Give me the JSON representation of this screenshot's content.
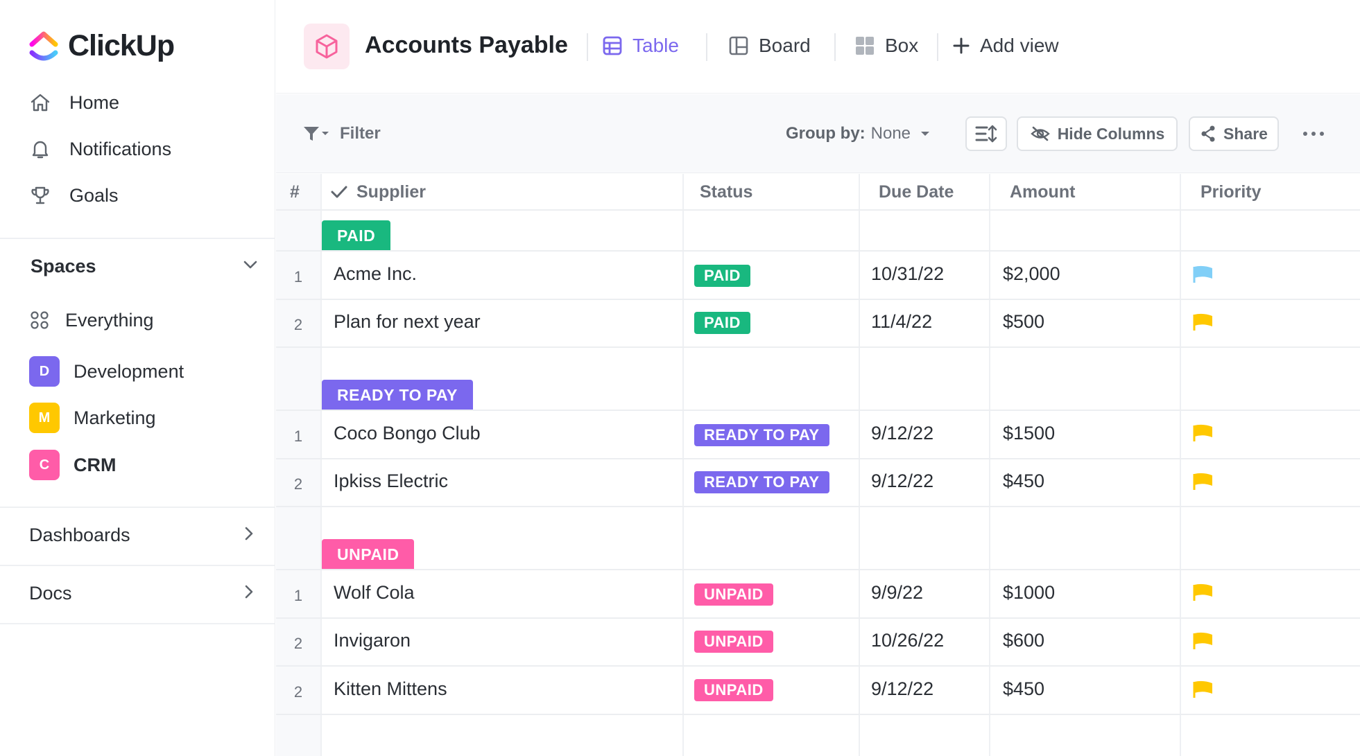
{
  "sidebar": {
    "logo_text": "ClickUp",
    "nav": [
      {
        "label": "Home",
        "icon": "home-icon"
      },
      {
        "label": "Notifications",
        "icon": "bell-icon"
      },
      {
        "label": "Goals",
        "icon": "trophy-icon"
      }
    ],
    "spaces_label": "Spaces",
    "everything_label": "Everything",
    "spaces": [
      {
        "letter": "D",
        "label": "Development",
        "color": "#7b68ee"
      },
      {
        "letter": "M",
        "label": "Marketing",
        "color": "#ffc800"
      },
      {
        "letter": "C",
        "label": "CRM",
        "color": "#ff5ca8"
      }
    ],
    "dashboards_label": "Dashboards",
    "docs_label": "Docs"
  },
  "header": {
    "title": "Accounts Payable",
    "views": [
      {
        "label": "Table",
        "icon": "table-icon",
        "active": true
      },
      {
        "label": "Board",
        "icon": "board-icon",
        "active": false
      },
      {
        "label": "Box",
        "icon": "box-grid-icon",
        "active": false
      }
    ],
    "add_view_label": "Add view"
  },
  "toolbar": {
    "filter_label": "Filter",
    "group_by_key": "Group by:",
    "group_by_value": "None",
    "hide_columns_label": "Hide Columns",
    "share_label": "Share"
  },
  "table": {
    "columns": {
      "num": "#",
      "supplier": "Supplier",
      "status": "Status",
      "due_date": "Due Date",
      "amount": "Amount",
      "priority": "Priority"
    },
    "groups": [
      {
        "name": "PAID",
        "color": "#19b87f",
        "rows": [
          {
            "num": "1",
            "supplier": "Acme Inc.",
            "status": "PAID",
            "due": "10/31/22",
            "amount": "$2,000",
            "priority_color": "#81cff7"
          },
          {
            "num": "2",
            "supplier": "Plan for next year",
            "status": "PAID",
            "due": "11/4/22",
            "amount": "$500",
            "priority_color": "#ffc800"
          }
        ]
      },
      {
        "name": "READY TO PAY",
        "color": "#7b68ee",
        "rows": [
          {
            "num": "1",
            "supplier": "Coco Bongo Club",
            "status": "READY TO PAY",
            "due": "9/12/22",
            "amount": "$1500",
            "priority_color": "#ffc800"
          },
          {
            "num": "2",
            "supplier": "Ipkiss Electric",
            "status": "READY TO PAY",
            "due": "9/12/22",
            "amount": "$450",
            "priority_color": "#ffc800"
          }
        ]
      },
      {
        "name": "UNPAID",
        "color": "#ff5ca8",
        "rows": [
          {
            "num": "1",
            "supplier": "Wolf Cola",
            "status": "UNPAID",
            "due": "9/9/22",
            "amount": "$1000",
            "priority_color": "#ffc800"
          },
          {
            "num": "2",
            "supplier": "Invigaron",
            "status": "UNPAID",
            "due": "10/26/22",
            "amount": "$600",
            "priority_color": "#ffc800"
          },
          {
            "num": "2",
            "supplier": "Kitten Mittens",
            "status": "UNPAID",
            "due": "9/12/22",
            "amount": "$450",
            "priority_color": "#ffc800"
          }
        ]
      }
    ]
  }
}
